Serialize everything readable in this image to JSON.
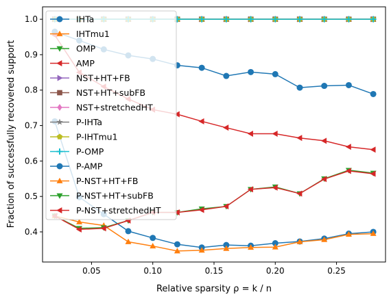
{
  "chart_data": {
    "type": "line",
    "title": "",
    "xlabel": "Relative sparsity ρ = k / n",
    "ylabel": "Fraction of successfully recovered support",
    "xlim": [
      0.01,
      0.29
    ],
    "ylim": [
      0.315,
      1.035
    ],
    "x": [
      0.02,
      0.04,
      0.06,
      0.08,
      0.1,
      0.12,
      0.14,
      0.16,
      0.18,
      0.2,
      0.22,
      0.24,
      0.26,
      0.28
    ],
    "x_ticks": [
      0.05,
      0.1,
      0.15,
      0.2,
      0.25
    ],
    "x_tick_labels": [
      "0.05",
      "0.10",
      "0.15",
      "0.20",
      "0.25"
    ],
    "y_ticks": [
      0.4,
      0.5,
      0.6,
      0.7,
      0.8,
      0.9,
      1.0
    ],
    "y_tick_labels": [
      "0.4",
      "0.5",
      "0.6",
      "0.7",
      "0.8",
      "0.9",
      "1.0"
    ],
    "grid": false,
    "legend_position": "upper-left",
    "series": [
      {
        "name": "IHTa",
        "color": "#1f77b4",
        "marker": "circle",
        "values": [
          0.965,
          0.94,
          0.915,
          0.898,
          0.888,
          0.87,
          0.863,
          0.84,
          0.851,
          0.845,
          0.807,
          0.812,
          0.814,
          0.789
        ]
      },
      {
        "name": "IHTmu1",
        "color": "#ff7f0e",
        "marker": "triangle-up",
        "values": [
          1.0,
          1.0,
          1.0,
          1.0,
          1.0,
          1.0,
          1.0,
          1.0,
          1.0,
          1.0,
          1.0,
          1.0,
          1.0,
          1.0
        ]
      },
      {
        "name": "OMP",
        "color": "#2ca02c",
        "marker": "triangle-down",
        "values": [
          1.0,
          1.0,
          1.0,
          1.0,
          1.0,
          1.0,
          1.0,
          1.0,
          1.0,
          1.0,
          1.0,
          1.0,
          1.0,
          1.0
        ]
      },
      {
        "name": "AMP",
        "color": "#d62728",
        "marker": "triangle-left",
        "values": [
          0.955,
          0.85,
          0.81,
          0.775,
          0.745,
          0.732,
          0.712,
          0.694,
          0.677,
          0.677,
          0.665,
          0.657,
          0.64,
          0.632
        ]
      },
      {
        "name": "NST+HT+FB",
        "color": "#9467bd",
        "marker": "triangle-right",
        "values": [
          1.0,
          1.0,
          1.0,
          1.0,
          1.0,
          1.0,
          1.0,
          1.0,
          1.0,
          1.0,
          1.0,
          1.0,
          1.0,
          1.0
        ]
      },
      {
        "name": "NST+HT+subFB",
        "color": "#8c564b",
        "marker": "square",
        "values": [
          1.0,
          1.0,
          1.0,
          1.0,
          1.0,
          1.0,
          1.0,
          1.0,
          1.0,
          1.0,
          1.0,
          1.0,
          1.0,
          1.0
        ]
      },
      {
        "name": "NST+stretchedHT",
        "color": "#e377c2",
        "marker": "diamond",
        "values": [
          1.0,
          1.0,
          1.0,
          1.0,
          1.0,
          1.0,
          1.0,
          1.0,
          1.0,
          1.0,
          1.0,
          1.0,
          1.0,
          1.0
        ]
      },
      {
        "name": "P-IHTa",
        "color": "#7f7f7f",
        "marker": "star",
        "values": [
          1.0,
          1.0,
          1.0,
          1.0,
          1.0,
          1.0,
          1.0,
          1.0,
          1.0,
          1.0,
          1.0,
          1.0,
          1.0,
          1.0
        ]
      },
      {
        "name": "P-IHTmu1",
        "color": "#bcbd22",
        "marker": "pentagon",
        "values": [
          1.0,
          1.0,
          1.0,
          1.0,
          1.0,
          1.0,
          1.0,
          1.0,
          1.0,
          1.0,
          1.0,
          1.0,
          1.0,
          1.0
        ]
      },
      {
        "name": "P-OMP",
        "color": "#17becf",
        "marker": "plus",
        "values": [
          1.0,
          1.0,
          1.0,
          1.0,
          1.0,
          1.0,
          1.0,
          1.0,
          1.0,
          1.0,
          1.0,
          1.0,
          1.0,
          1.0
        ]
      },
      {
        "name": "P-AMP",
        "color": "#1f77b4",
        "marker": "circle",
        "values": [
          0.712,
          0.498,
          0.45,
          0.402,
          0.383,
          0.365,
          0.356,
          0.363,
          0.361,
          0.368,
          0.373,
          0.381,
          0.395,
          0.4
        ]
      },
      {
        "name": "P-NST+HT+FB",
        "color": "#ff7f0e",
        "marker": "triangle-up",
        "values": [
          0.445,
          0.428,
          0.418,
          0.372,
          0.36,
          0.346,
          0.348,
          0.353,
          0.356,
          0.357,
          0.372,
          0.378,
          0.393,
          0.395
        ]
      },
      {
        "name": "P-NST+HT+subFB",
        "color": "#2ca02c",
        "marker": "triangle-down",
        "values": [
          0.445,
          0.41,
          0.412,
          0.432,
          0.455,
          0.455,
          0.465,
          0.472,
          0.52,
          0.527,
          0.508,
          0.55,
          0.574,
          0.566
        ]
      },
      {
        "name": "P-NST+stretchedHT",
        "color": "#d62728",
        "marker": "triangle-left",
        "values": [
          0.445,
          0.407,
          0.41,
          0.432,
          0.455,
          0.455,
          0.462,
          0.472,
          0.52,
          0.525,
          0.508,
          0.549,
          0.572,
          0.564
        ]
      }
    ]
  }
}
